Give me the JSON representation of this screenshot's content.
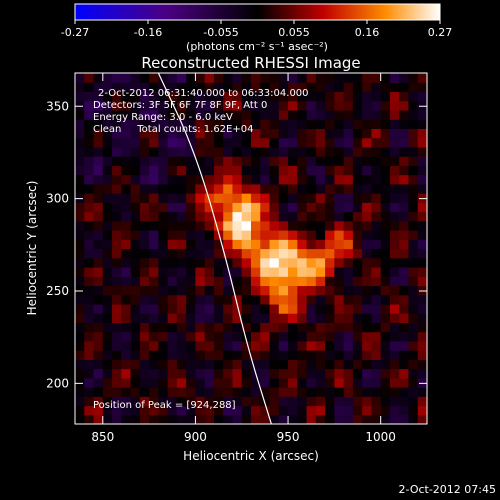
{
  "chart_data": {
    "type": "heatmap",
    "title": "Reconstructed RHESSI Image",
    "xlabel": "Heliocentric X (arcsec)",
    "ylabel": "Heliocentric Y (arcsec)",
    "xlim": [
      835,
      1025
    ],
    "ylim": [
      178,
      368
    ],
    "xticks": [
      850,
      900,
      950,
      1000
    ],
    "yticks": [
      200,
      250,
      300,
      350
    ],
    "colorbar": {
      "min": -0.27,
      "max": 0.27,
      "ticks": [
        "-0.27",
        "-0.16",
        "-0.055",
        "0.055",
        "0.16",
        "0.27"
      ],
      "units": "(photons cm⁻² s⁻¹ asec⁻²)",
      "colormap": [
        "#0000ff",
        "#4b0082",
        "#000000",
        "#c00000",
        "#ff8c00",
        "#ffffff"
      ]
    },
    "annotations": {
      "time_range": "2-Oct-2012 06:31:40.000 to 06:33:04.000",
      "detectors": "Detectors: 3F 5F 6F 7F 8F 9F, Att 0",
      "energy_range": "Energy Range: 3.0 - 6.0 keV",
      "clean_counts": "Clean     Total counts: 1.62E+04",
      "peak_position": "Position of Peak = [924,288]"
    },
    "sources": [
      {
        "x": 924,
        "y": 290,
        "peak": 0.27,
        "sigma_x": 8,
        "sigma_y": 10
      },
      {
        "x": 947,
        "y": 258,
        "peak": 0.23,
        "sigma_x": 9,
        "sigma_y": 13
      },
      {
        "x": 965,
        "y": 267,
        "peak": 0.16,
        "sigma_x": 9,
        "sigma_y": 8
      },
      {
        "x": 935,
        "y": 272,
        "peak": 0.14,
        "sigma_x": 8,
        "sigma_y": 8
      },
      {
        "x": 912,
        "y": 305,
        "peak": 0.1,
        "sigma_x": 8,
        "sigma_y": 7
      },
      {
        "x": 980,
        "y": 278,
        "peak": 0.08,
        "sigma_x": 8,
        "sigma_y": 7
      }
    ],
    "limb_curve": [
      [
        880,
        368
      ],
      [
        900,
        325
      ],
      [
        916,
        270
      ],
      [
        928,
        220
      ],
      [
        941,
        178
      ]
    ],
    "timestamp": "2-Oct-2012 07:45"
  }
}
